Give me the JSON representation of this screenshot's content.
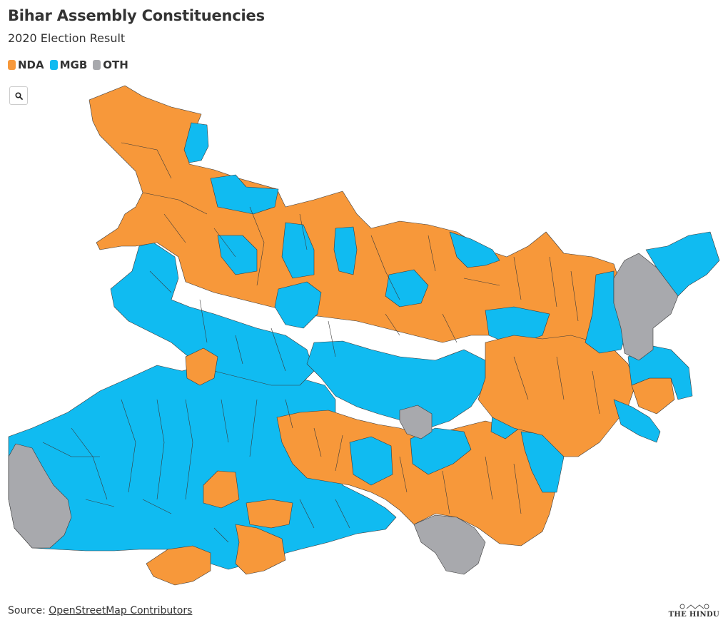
{
  "header": {
    "title": "Bihar Assembly Constituencies",
    "subtitle": "2020 Election Result"
  },
  "legend": [
    {
      "label": "NDA",
      "color": "#F7983A"
    },
    {
      "label": "MGB",
      "color": "#10BBF1"
    },
    {
      "label": "OTH",
      "color": "#A8A9AD"
    }
  ],
  "search": {
    "icon": "search-icon"
  },
  "footer": {
    "source_prefix": "Source: ",
    "source_link": "OpenStreetMap Contributors",
    "logo_text": "THE HINDU"
  }
}
